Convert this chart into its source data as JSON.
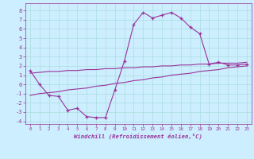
{
  "xlabel": "Windchill (Refroidissement éolien,°C)",
  "x": [
    0,
    1,
    2,
    3,
    4,
    5,
    6,
    7,
    8,
    9,
    10,
    11,
    12,
    13,
    14,
    15,
    16,
    17,
    18,
    19,
    20,
    21,
    22,
    23
  ],
  "line1_y": [
    1.5,
    0.0,
    -1.2,
    -1.3,
    -2.8,
    -2.6,
    -3.5,
    -3.6,
    -3.6,
    -0.6,
    2.5,
    6.5,
    7.8,
    7.2,
    7.5,
    7.8,
    7.2,
    6.2,
    5.5,
    2.2,
    2.4,
    2.1,
    2.1,
    2.2
  ],
  "line2_y": [
    1.2,
    1.3,
    1.4,
    1.4,
    1.5,
    1.5,
    1.6,
    1.6,
    1.7,
    1.7,
    1.8,
    1.8,
    1.9,
    1.9,
    2.0,
    2.0,
    2.1,
    2.1,
    2.2,
    2.2,
    2.3,
    2.3,
    2.3,
    2.4
  ],
  "line3_y": [
    -1.2,
    -1.0,
    -0.9,
    -0.8,
    -0.6,
    -0.5,
    -0.4,
    -0.2,
    -0.1,
    0.1,
    0.2,
    0.4,
    0.5,
    0.7,
    0.8,
    1.0,
    1.1,
    1.2,
    1.4,
    1.5,
    1.6,
    1.8,
    1.9,
    2.0
  ],
  "color": "#993399",
  "bg_color": "#cceeff",
  "grid_color": "#aadddd",
  "ylim": [
    -4.3,
    8.8
  ],
  "xlim": [
    -0.5,
    23.5
  ],
  "yticks": [
    -4,
    -3,
    -2,
    -1,
    0,
    1,
    2,
    3,
    4,
    5,
    6,
    7,
    8
  ],
  "xticks": [
    0,
    1,
    2,
    3,
    4,
    5,
    6,
    7,
    8,
    9,
    10,
    11,
    12,
    13,
    14,
    15,
    16,
    17,
    18,
    19,
    20,
    21,
    22,
    23
  ]
}
